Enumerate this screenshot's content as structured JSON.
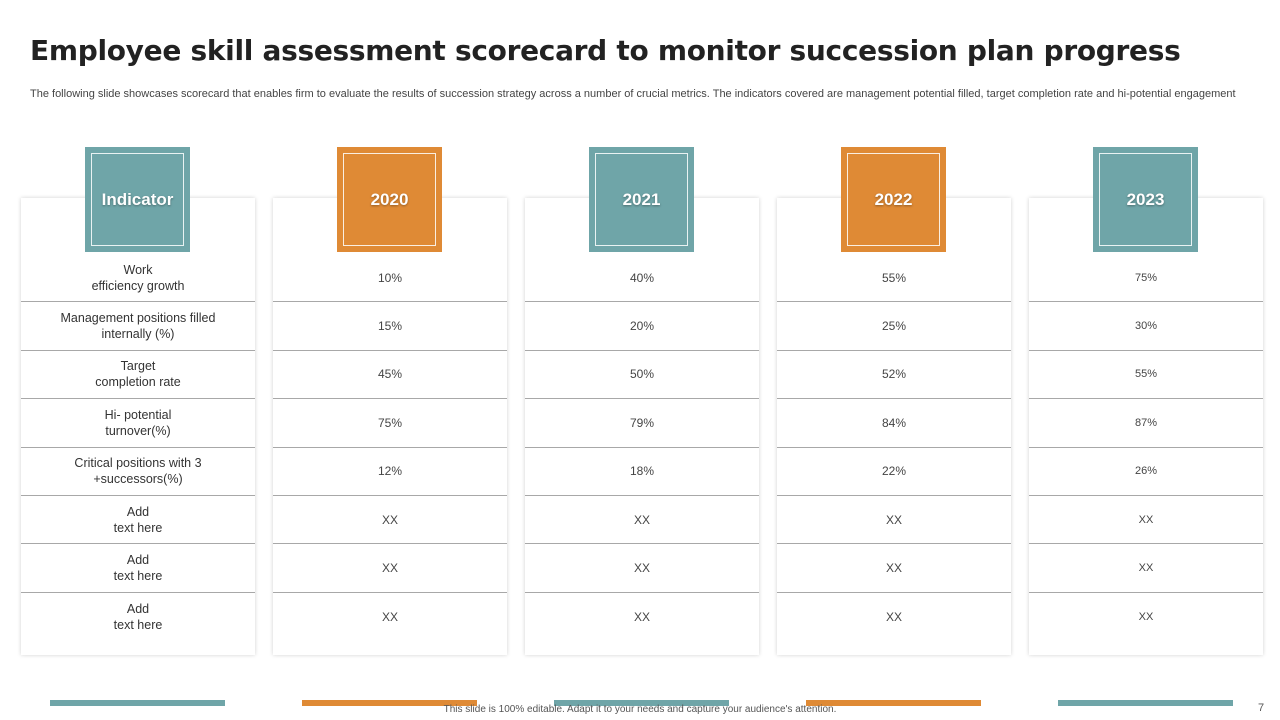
{
  "slide": {
    "title": "Employee skill assessment scorecard to monitor succession plan progress",
    "subtitle": "The following slide showcases scorecard that enables firm to evaluate the results of succession strategy across a number of crucial metrics. The indicators covered are management potential filled, target completion rate and hi-potential engagement",
    "footer_note": "This slide is 100% editable.  Adapt it to your needs and capture your audience's attention.",
    "page_number": "7"
  },
  "colors": {
    "teal": "#6fa5a8",
    "orange": "#df8a35"
  },
  "indicator_column": {
    "header": "Indicator",
    "rows": [
      "Work\nefficiency growth",
      "Management  positions filled internally (%)",
      "Target\ncompletion rate",
      "Hi- potential\nturnover(%)",
      "Critical positions with 3 +successors(%)",
      "Add\ntext here",
      "Add\ntext here",
      "Add\ntext here"
    ]
  },
  "year_columns": [
    {
      "header": "2020",
      "values": [
        "10%",
        "15%",
        "45%",
        "75%",
        "12%",
        "XX",
        "XX",
        "XX"
      ]
    },
    {
      "header": "2021",
      "values": [
        "40%",
        "20%",
        "50%",
        "79%",
        "18%",
        "XX",
        "XX",
        "XX"
      ]
    },
    {
      "header": "2022",
      "values": [
        "55%",
        "25%",
        "52%",
        "84%",
        "22%",
        "XX",
        "XX",
        "XX"
      ]
    },
    {
      "header": "2023",
      "values": [
        "75%",
        "30%",
        "55%",
        "87%",
        "26%",
        "XX",
        "XX",
        "XX"
      ]
    }
  ]
}
